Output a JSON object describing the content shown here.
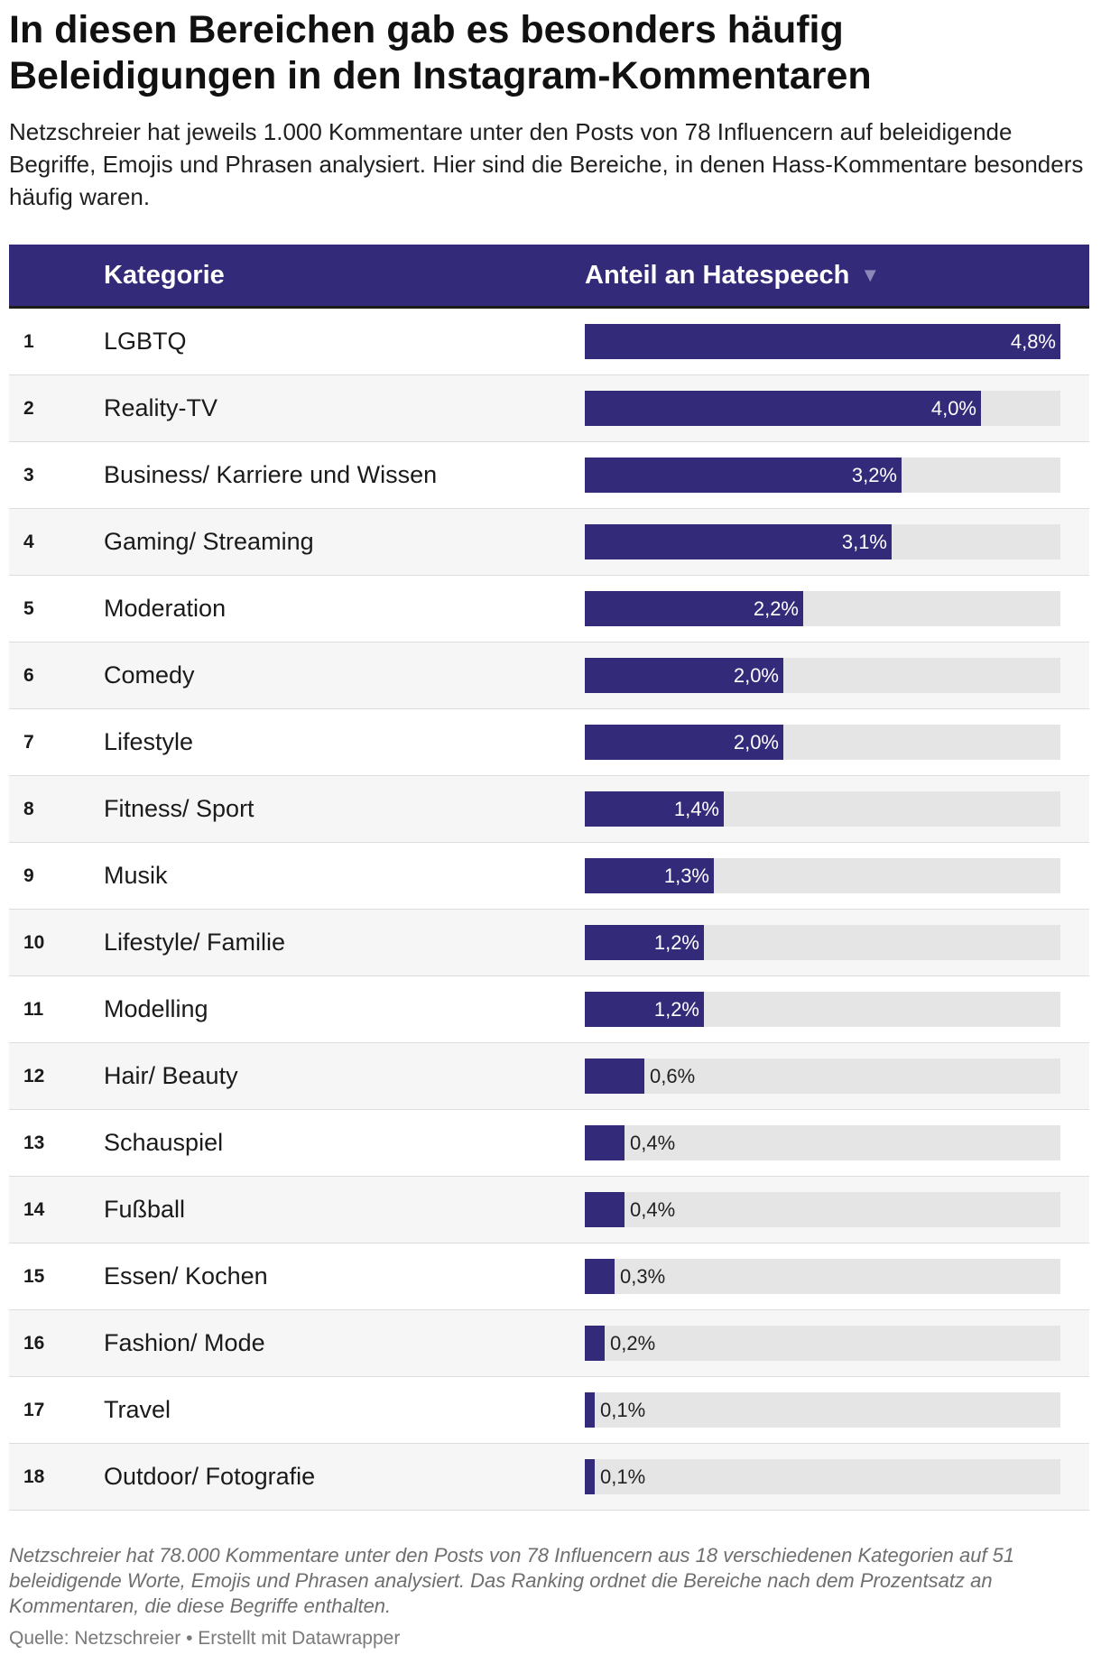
{
  "title": "In diesen Bereichen gab es besonders häufig Beleidigungen in den Instagram-Kommentaren",
  "subtitle": "Netzschreier hat jeweils 1.000 Kommentare unter den Posts von 78 Influencern auf beleidigende Begriffe, Emojis und Phrasen analysiert. Hier sind die Bereiche, in denen Hass-Kommentare besonders häufig waren.",
  "table_header": {
    "category_label": "Kategorie",
    "value_label": "Anteil an Hatespeech",
    "sort_indicator": "▼"
  },
  "colors": {
    "bar": "#332b7a",
    "track": "#e5e5e5",
    "header_bg": "#332b7a"
  },
  "chart_data": {
    "type": "table",
    "title": "In diesen Bereichen gab es besonders häufig Beleidigungen in den Instagram-Kommentaren",
    "columns": [
      "",
      "Kategorie",
      "Anteil an Hatespeech"
    ],
    "max_value": 4.8,
    "unit": "%",
    "rows": [
      {
        "rank": "1",
        "category": "LGBTQ",
        "value": 4.8,
        "label": "4,8%"
      },
      {
        "rank": "2",
        "category": "Reality-TV",
        "value": 4.0,
        "label": "4,0%"
      },
      {
        "rank": "3",
        "category": "Business/ Karriere und Wissen",
        "value": 3.2,
        "label": "3,2%"
      },
      {
        "rank": "4",
        "category": "Gaming/ Streaming",
        "value": 3.1,
        "label": "3,1%"
      },
      {
        "rank": "5",
        "category": "Moderation",
        "value": 2.2,
        "label": "2,2%"
      },
      {
        "rank": "6",
        "category": "Comedy",
        "value": 2.0,
        "label": "2,0%"
      },
      {
        "rank": "7",
        "category": "Lifestyle",
        "value": 2.0,
        "label": "2,0%"
      },
      {
        "rank": "8",
        "category": "Fitness/ Sport",
        "value": 1.4,
        "label": "1,4%"
      },
      {
        "rank": "9",
        "category": "Musik",
        "value": 1.3,
        "label": "1,3%"
      },
      {
        "rank": "10",
        "category": "Lifestyle/ Familie",
        "value": 1.2,
        "label": "1,2%"
      },
      {
        "rank": "11",
        "category": "Modelling",
        "value": 1.2,
        "label": "1,2%"
      },
      {
        "rank": "12",
        "category": "Hair/ Beauty",
        "value": 0.6,
        "label": "0,6%"
      },
      {
        "rank": "13",
        "category": "Schauspiel",
        "value": 0.4,
        "label": "0,4%"
      },
      {
        "rank": "14",
        "category": "Fußball",
        "value": 0.4,
        "label": "0,4%"
      },
      {
        "rank": "15",
        "category": "Essen/ Kochen",
        "value": 0.3,
        "label": "0,3%"
      },
      {
        "rank": "16",
        "category": "Fashion/ Mode",
        "value": 0.2,
        "label": "0,2%"
      },
      {
        "rank": "17",
        "category": "Travel",
        "value": 0.1,
        "label": "0,1%"
      },
      {
        "rank": "18",
        "category": "Outdoor/ Fotografie",
        "value": 0.1,
        "label": "0,1%"
      }
    ]
  },
  "notes": "Netzschreier hat 78.000 Kommentare unter den Posts von 78 Influencern aus 18 verschiedenen Kategorien auf 51 beleidigende Worte, Emojis und Phrasen analysiert. Das Ranking ordnet die Bereiche nach dem Prozentsatz an Kommentaren, die diese Begriffe enthalten.",
  "source": "Quelle: Netzschreier • Erstellt mit Datawrapper"
}
